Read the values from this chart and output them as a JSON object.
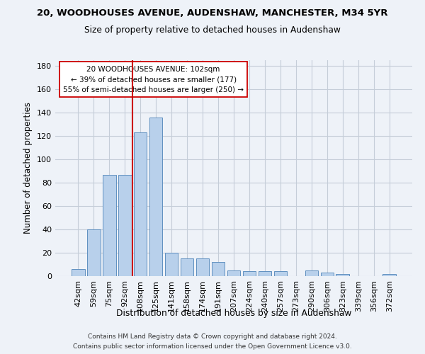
{
  "title": "20, WOODHOUSES AVENUE, AUDENSHAW, MANCHESTER, M34 5YR",
  "subtitle": "Size of property relative to detached houses in Audenshaw",
  "xlabel": "Distribution of detached houses by size in Audenshaw",
  "ylabel": "Number of detached properties",
  "categories": [
    "42sqm",
    "59sqm",
    "75sqm",
    "92sqm",
    "108sqm",
    "125sqm",
    "141sqm",
    "158sqm",
    "174sqm",
    "191sqm",
    "207sqm",
    "224sqm",
    "240sqm",
    "257sqm",
    "273sqm",
    "290sqm",
    "306sqm",
    "323sqm",
    "339sqm",
    "356sqm",
    "372sqm"
  ],
  "values": [
    6,
    40,
    87,
    87,
    123,
    136,
    20,
    15,
    15,
    12,
    5,
    4,
    4,
    4,
    0,
    5,
    3,
    2,
    0,
    0,
    2
  ],
  "bar_color": "#b8d0eb",
  "bar_edge_color": "#6090c0",
  "background_color": "#eef2f8",
  "grid_color": "#c5cdd8",
  "vline_x": 3.5,
  "vline_color": "#cc0000",
  "annotation_text": "20 WOODHOUSES AVENUE: 102sqm\n← 39% of detached houses are smaller (177)\n55% of semi-detached houses are larger (250) →",
  "annotation_box_edge": "#cc0000",
  "ylim_max": 185,
  "yticks": [
    0,
    20,
    40,
    60,
    80,
    100,
    120,
    140,
    160,
    180
  ],
  "footer1": "Contains HM Land Registry data © Crown copyright and database right 2024.",
  "footer2": "Contains public sector information licensed under the Open Government Licence v3.0."
}
